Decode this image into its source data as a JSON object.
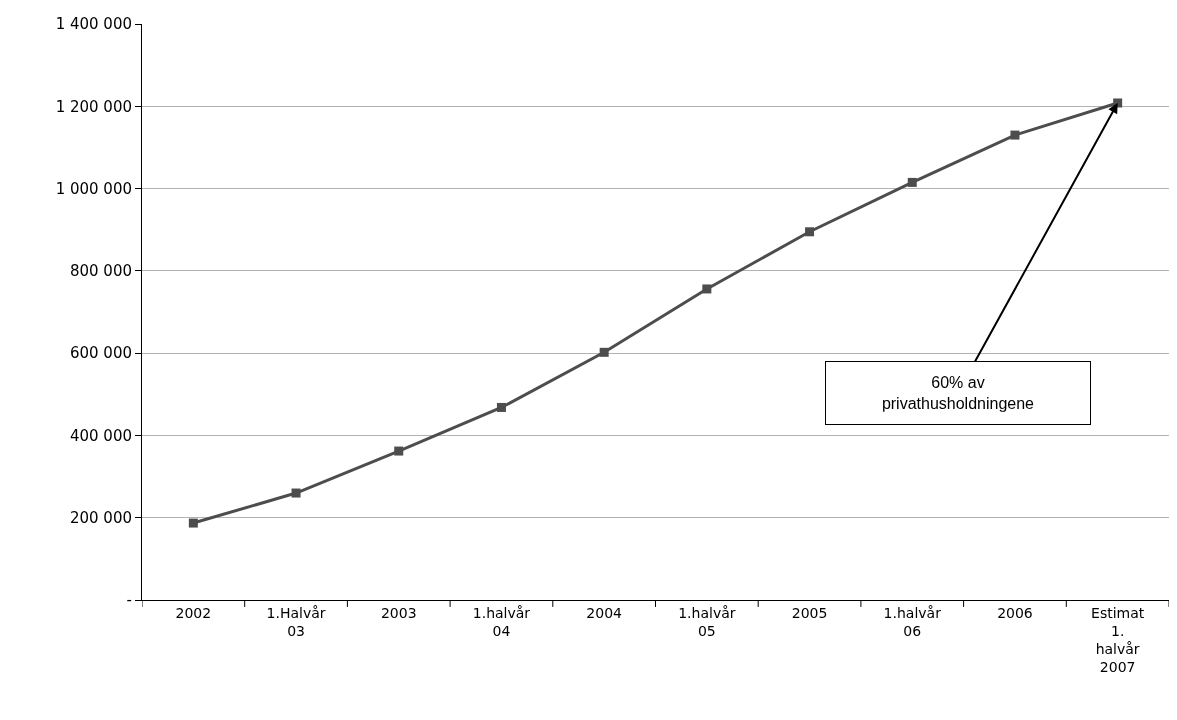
{
  "chart_data": {
    "type": "line",
    "categories": [
      "2002",
      "1.Halvår 03",
      "2003",
      "1.halvår 04",
      "2004",
      "1.halvår 05",
      "2005",
      "1.halvår 06",
      "2006",
      "Estimat 1. halvår 2007"
    ],
    "series": [
      {
        "color": "#4d4d4d",
        "values": [
          187000,
          260000,
          362000,
          468000,
          602000,
          756000,
          895000,
          1015000,
          1130000,
          1208000
        ]
      }
    ],
    "ylim": [
      0,
      1400000
    ],
    "yticks": [
      {
        "value": 0,
        "label": "-"
      },
      {
        "value": 200000,
        "label": "200 000"
      },
      {
        "value": 400000,
        "label": "400 000"
      },
      {
        "value": 600000,
        "label": "600 000"
      },
      {
        "value": 800000,
        "label": "800 000"
      },
      {
        "value": 1000000,
        "label": "1 000 000"
      },
      {
        "value": 1200000,
        "label": "1 200 000"
      },
      {
        "value": 1400000,
        "label": "1 400 000"
      }
    ],
    "annotations": [
      {
        "text": "60% av privathusholdningene",
        "x": "Estimat 1. halvår 2007",
        "y": 1208000
      }
    ],
    "grid": "y",
    "marker": "square",
    "line_style": "solid"
  }
}
